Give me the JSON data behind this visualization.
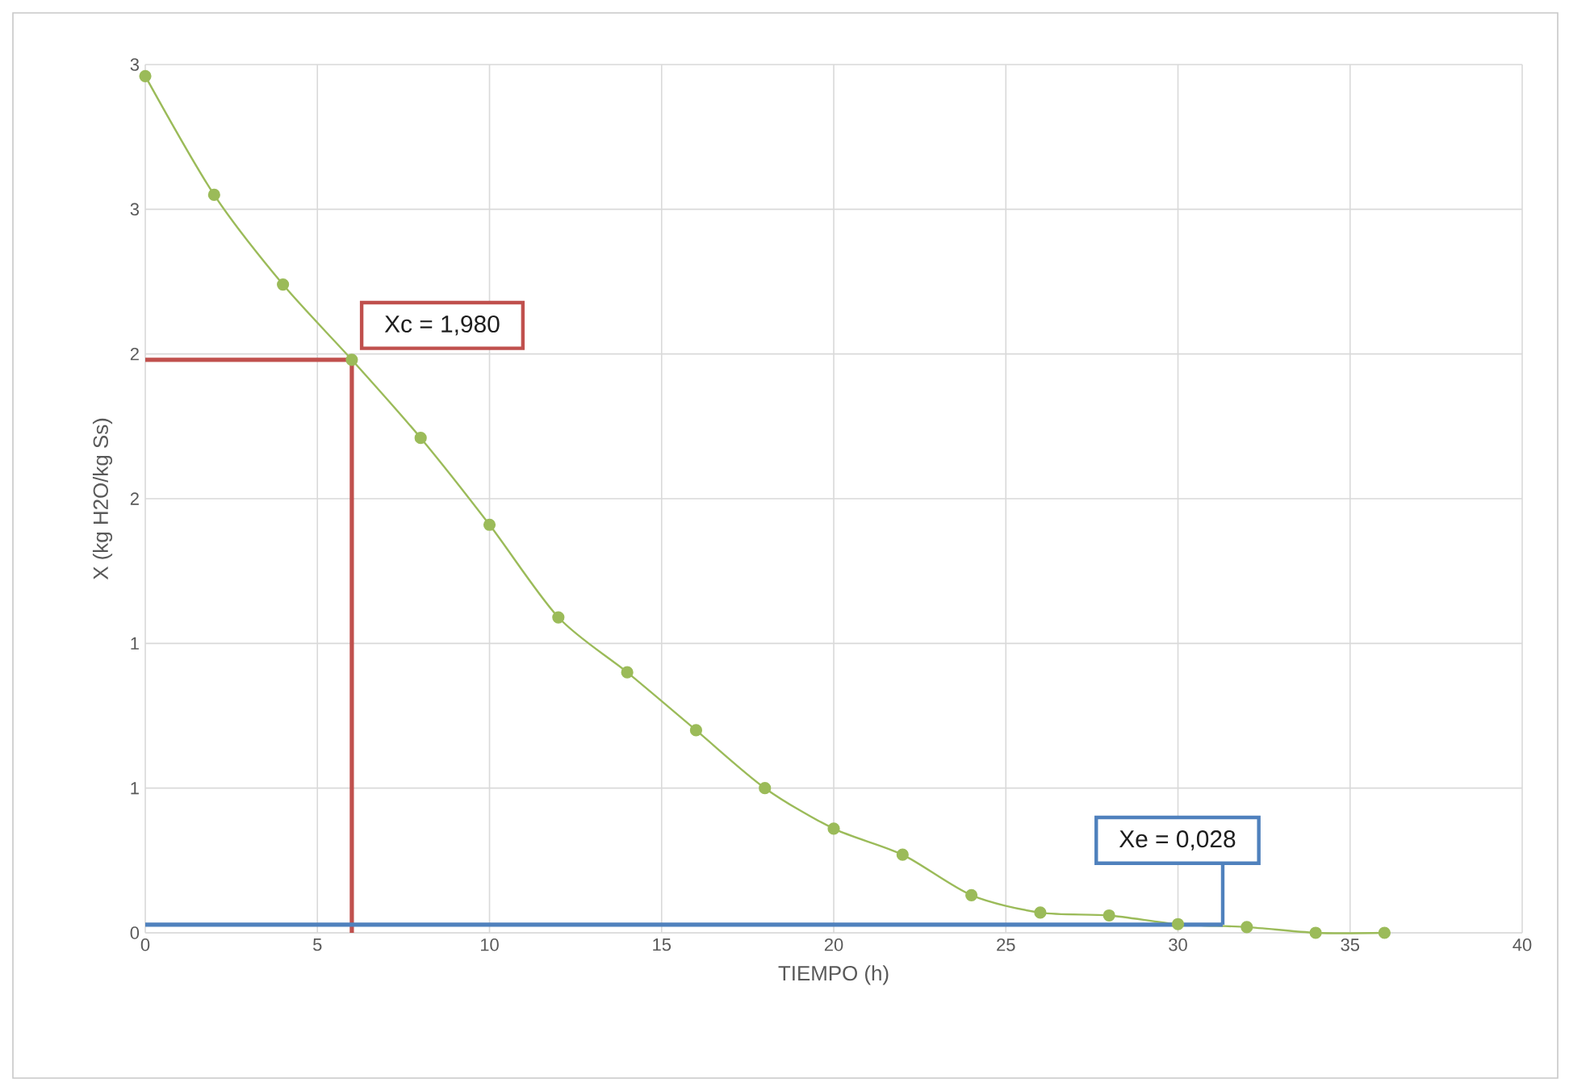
{
  "chart_data": {
    "type": "line",
    "xlabel": "TIEMPO (h)",
    "ylabel": "X (kg H2O/kg Ss)",
    "xlim": [
      0,
      40
    ],
    "xticks": [
      0,
      5,
      10,
      15,
      20,
      25,
      30,
      35,
      40
    ],
    "ylim": [
      0,
      3
    ],
    "yticks": [
      0,
      {
        "value": 0.5,
        "label": "1"
      },
      1,
      {
        "value": 1.5,
        "label": "2"
      },
      2,
      {
        "value": 2.5,
        "label": "3"
      },
      3
    ],
    "grid": true,
    "marker": "circle",
    "series": [
      {
        "color": "#9bbb59",
        "x": [
          0,
          2,
          4,
          6,
          8,
          10,
          12,
          14,
          16,
          18,
          20,
          22,
          24,
          26,
          28,
          30,
          32,
          34,
          36
        ],
        "values": [
          2.96,
          2.55,
          2.24,
          1.98,
          1.71,
          1.41,
          1.09,
          0.9,
          0.7,
          0.5,
          0.36,
          0.27,
          0.13,
          0.07,
          0.06,
          0.03,
          0.02,
          0,
          0
        ]
      },
      {
        "color": "#c0504d",
        "marker": "none",
        "x": [
          0,
          6,
          6
        ],
        "values": [
          1.98,
          1.98,
          0
        ]
      },
      {
        "color": "#4f81bd",
        "marker": "none",
        "x": [
          0,
          31.3
        ],
        "values": [
          0.028,
          0.028
        ]
      }
    ],
    "annotations": [
      {
        "text": "Xc = 1,980",
        "x": 6,
        "y": 1.98
      },
      {
        "text": "Xe = 0,028",
        "x": 31.3,
        "y": 0.028
      }
    ]
  }
}
